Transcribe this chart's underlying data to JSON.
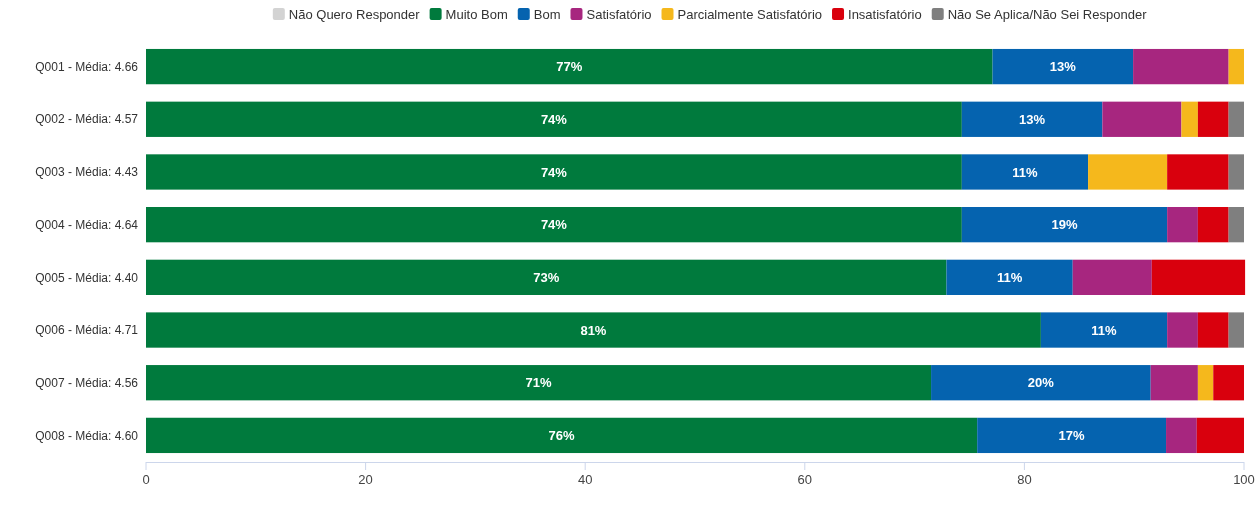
{
  "chart_data": {
    "type": "bar",
    "orientation": "horizontal",
    "stacked": true,
    "legend": "top",
    "grid": false,
    "categories": [
      "Q001 - Média: 4.66",
      "Q002 - Média: 4.57",
      "Q003 - Média: 4.43",
      "Q004 - Média: 4.64",
      "Q005 - Média: 4.40",
      "Q006 - Média: 4.71",
      "Q007 - Média: 4.56",
      "Q008 - Média: 4.60"
    ],
    "xlim": [
      0,
      100
    ],
    "xticks": [
      0,
      20,
      40,
      60,
      80,
      100
    ],
    "series": [
      {
        "name": "Não Quero Responder",
        "color": "#d3d3d3",
        "values": [
          null,
          null,
          null,
          null,
          null,
          null,
          null,
          null
        ]
      },
      {
        "name": "Muito Bom",
        "color": "#007a3d",
        "values": [
          77.1,
          74.3,
          74.3,
          74.3,
          72.9,
          81.5,
          71.5,
          75.7
        ],
        "value_labels": [
          "77%",
          "74%",
          "74%",
          "74%",
          "73%",
          "81%",
          "71%",
          "76%"
        ]
      },
      {
        "name": "Bom",
        "color": "#0563af",
        "values": [
          12.8,
          12.8,
          11.5,
          18.7,
          11.5,
          11.5,
          20.0,
          17.2
        ],
        "value_labels": [
          "13%",
          "13%",
          "11%",
          "19%",
          "11%",
          "11%",
          "20%",
          "17%"
        ]
      },
      {
        "name": "Satisfatório",
        "color": "#a7267f",
        "values": [
          8.7,
          7.2,
          null,
          2.8,
          7.2,
          2.8,
          4.3,
          2.8
        ]
      },
      {
        "name": "Parcialmente Satisfatório",
        "color": "#f5b81c",
        "values": [
          1.4,
          1.5,
          7.2,
          null,
          null,
          null,
          1.4,
          null
        ]
      },
      {
        "name": "Insatisfatório",
        "color": "#d9000d",
        "values": [
          null,
          2.8,
          5.6,
          2.8,
          8.5,
          2.8,
          2.8,
          4.3
        ]
      },
      {
        "name": "Não Se Aplica/Não Sei Responder",
        "color": "#7f7f7f",
        "values": [
          null,
          1.4,
          1.4,
          1.4,
          null,
          1.4,
          null,
          null
        ]
      }
    ]
  }
}
